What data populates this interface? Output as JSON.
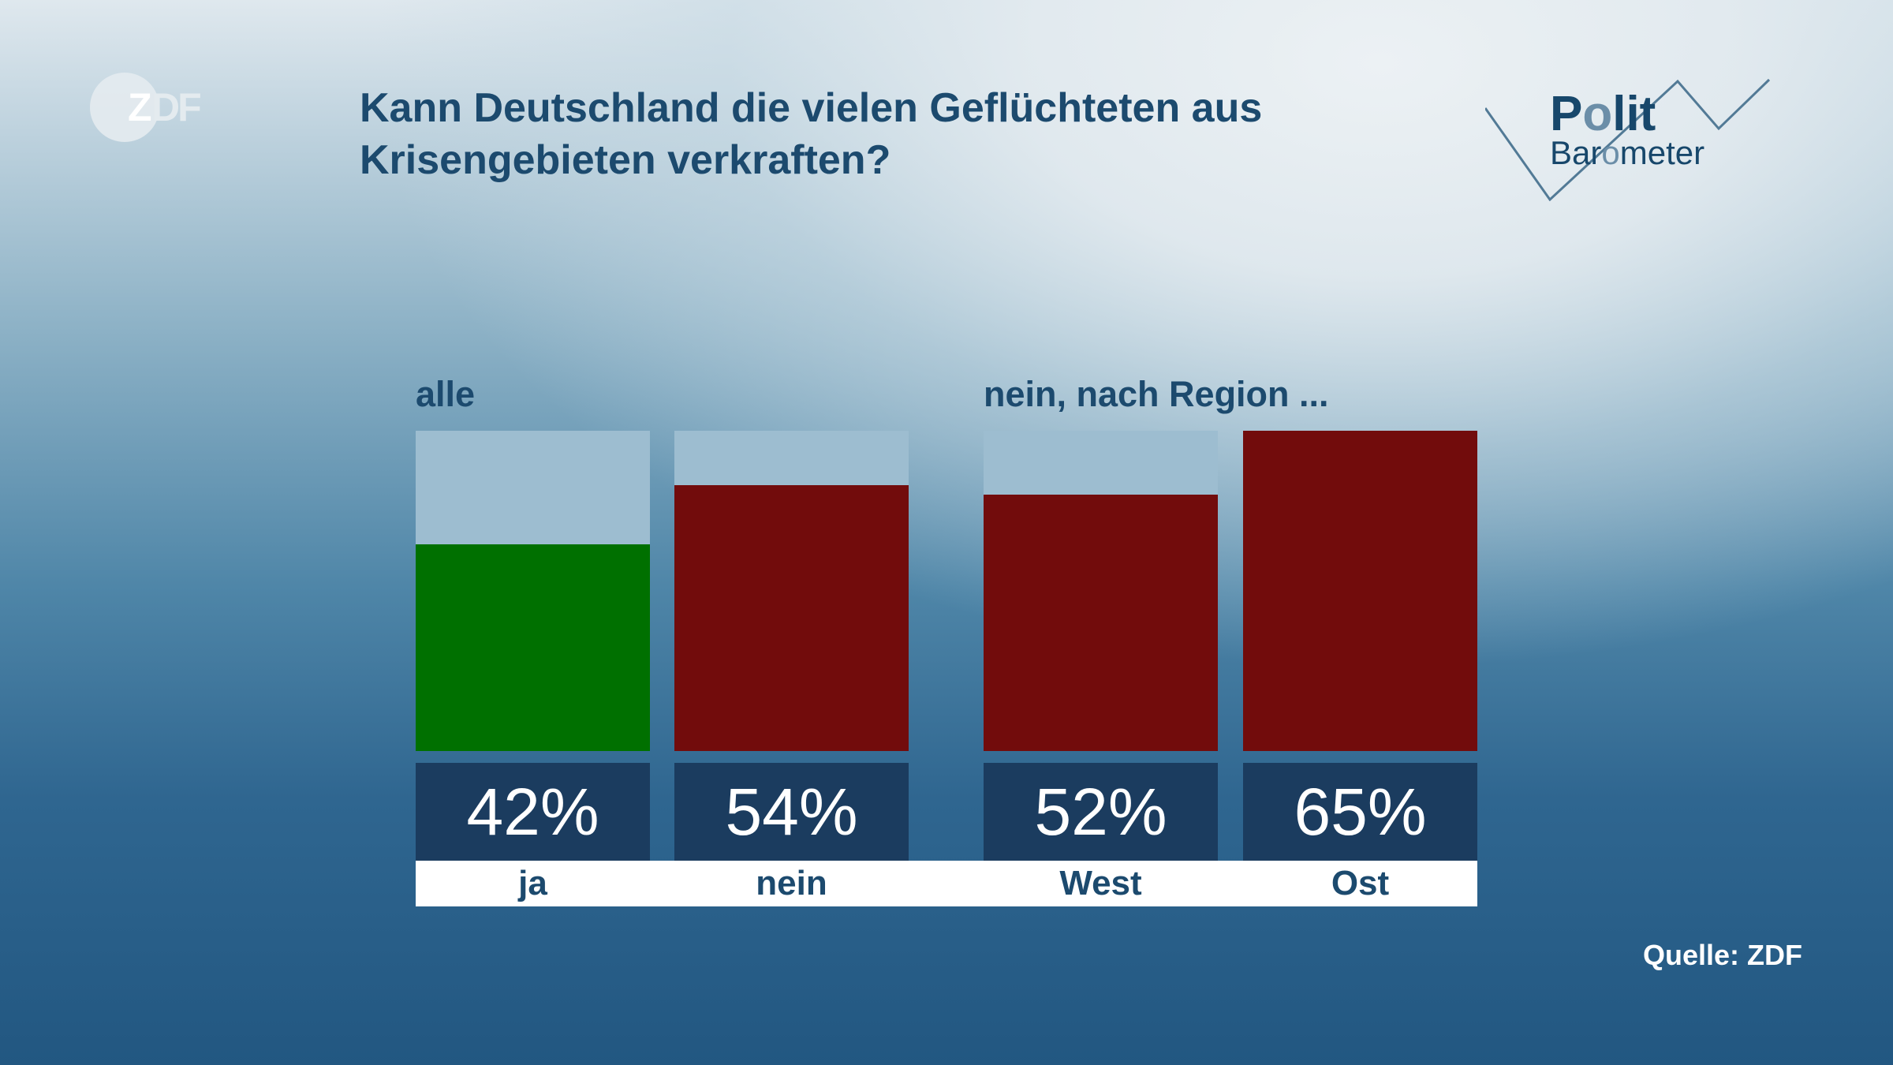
{
  "title": "Kann Deutschland die vielen Geflüchteten aus Krisengebieten verkraften?",
  "logo_left": "ZDF",
  "logo_right": {
    "line1": "Polit",
    "line2": "Barometer"
  },
  "source": "Quelle: ZDF",
  "chart_data": {
    "type": "bar",
    "title": "Kann Deutschland die vielen Geflüchteten aus Krisengebieten verkraften?",
    "unit": "%",
    "groups": [
      {
        "label": "alle",
        "categories": [
          "ja",
          "nein"
        ],
        "values": [
          42,
          54
        ],
        "colors": [
          "#007000",
          "#720c0c"
        ]
      },
      {
        "label": "nein, nach Region ...",
        "categories": [
          "West",
          "Ost"
        ],
        "values": [
          52,
          65
        ],
        "colors": [
          "#720c0c",
          "#720c0c"
        ]
      }
    ],
    "value_labels": [
      "42%",
      "54%",
      "52%",
      "65%"
    ],
    "ylim": [
      0,
      65
    ],
    "grid": false,
    "legend": "none",
    "track_color": "#9dbdd0"
  }
}
